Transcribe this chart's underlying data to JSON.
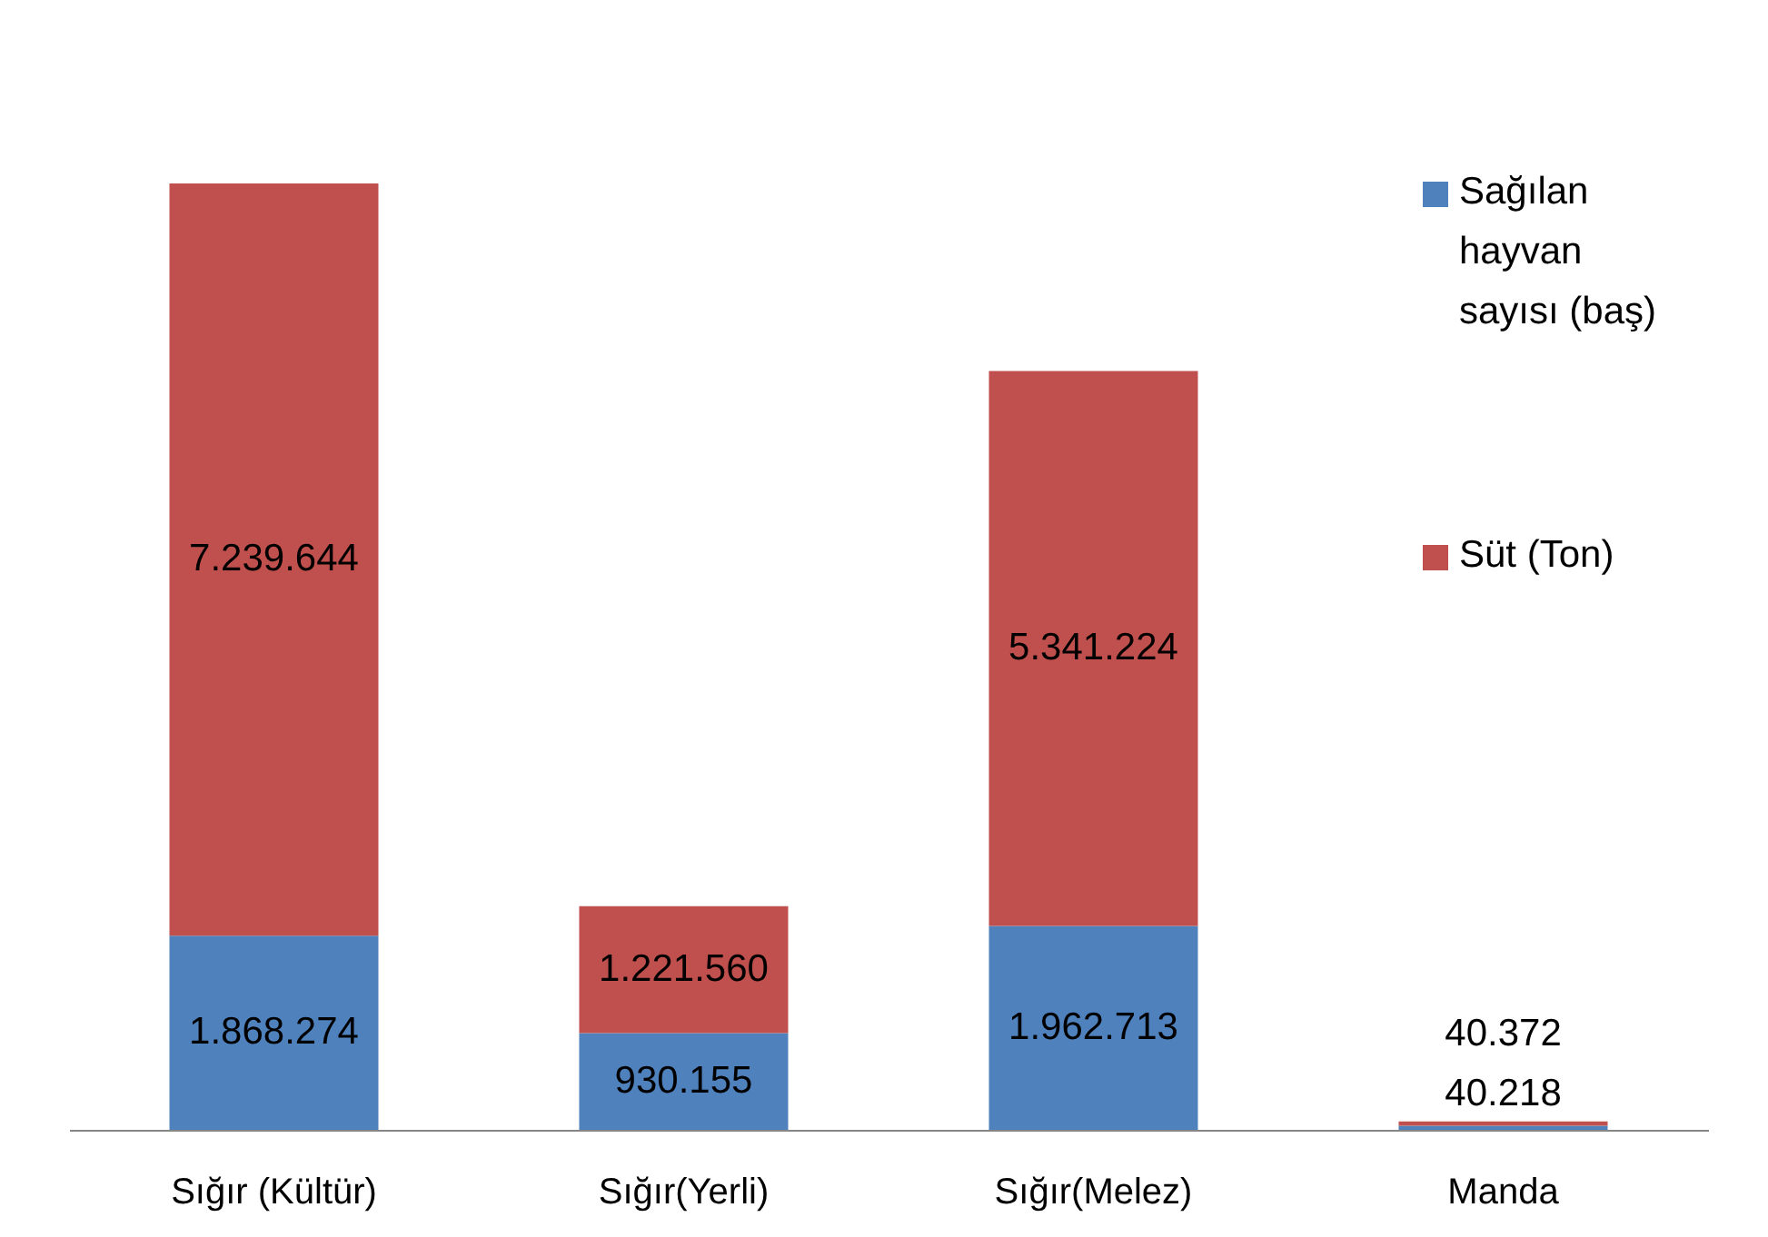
{
  "chart_data": {
    "type": "bar",
    "stacked": true,
    "categories": [
      "Sığır (Kültür)",
      "Sığır(Yerli)",
      "Sığır(Melez)",
      "Manda"
    ],
    "series": [
      {
        "name": "Sağılan hayvan sayısı (baş)",
        "color": "#4f81bd",
        "values": [
          1868274,
          930155,
          1962713,
          40218
        ],
        "value_labels": [
          "1.868.274",
          "930.155",
          "1.962.713",
          "40.218"
        ]
      },
      {
        "name": "Süt (Ton)",
        "color": "#c0504d",
        "values": [
          7239644,
          1221560,
          5341224,
          40372
        ],
        "value_labels": [
          "7.239.644",
          "1.221.560",
          "5.341.224",
          "40.372"
        ]
      }
    ],
    "tick_labels": "x",
    "legend": "top right"
  }
}
